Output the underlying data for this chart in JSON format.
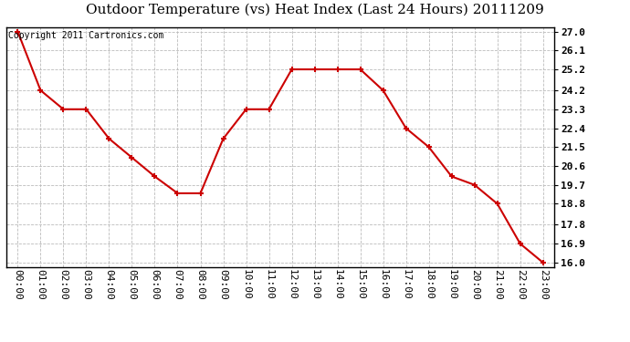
{
  "title": "Outdoor Temperature (vs) Heat Index (Last 24 Hours) 20111209",
  "copyright_text": "Copyright 2011 Cartronics.com",
  "x_labels": [
    "00:00",
    "01:00",
    "02:00",
    "03:00",
    "04:00",
    "05:00",
    "06:00",
    "07:00",
    "08:00",
    "09:00",
    "10:00",
    "11:00",
    "12:00",
    "13:00",
    "14:00",
    "15:00",
    "16:00",
    "17:00",
    "18:00",
    "19:00",
    "20:00",
    "21:00",
    "22:00",
    "23:00"
  ],
  "y_values": [
    27.0,
    24.2,
    23.3,
    23.3,
    21.9,
    21.0,
    20.1,
    19.3,
    19.3,
    21.9,
    23.3,
    23.3,
    25.2,
    25.2,
    25.2,
    25.2,
    24.2,
    22.4,
    21.5,
    20.1,
    19.7,
    18.8,
    16.9,
    16.0
  ],
  "line_color": "#cc0000",
  "marker": "+",
  "marker_size": 5,
  "marker_edge_width": 1.5,
  "background_color": "#ffffff",
  "plot_bg_color": "#ffffff",
  "grid_color": "#bbbbbb",
  "grid_style": "--",
  "ylim_min": 16.0,
  "ylim_max": 27.0,
  "yticks": [
    16.0,
    16.9,
    17.8,
    18.8,
    19.7,
    20.6,
    21.5,
    22.4,
    23.3,
    24.2,
    25.2,
    26.1,
    27.0
  ],
  "title_fontsize": 11,
  "tick_fontsize": 8,
  "copyright_fontsize": 7,
  "line_width": 1.5
}
